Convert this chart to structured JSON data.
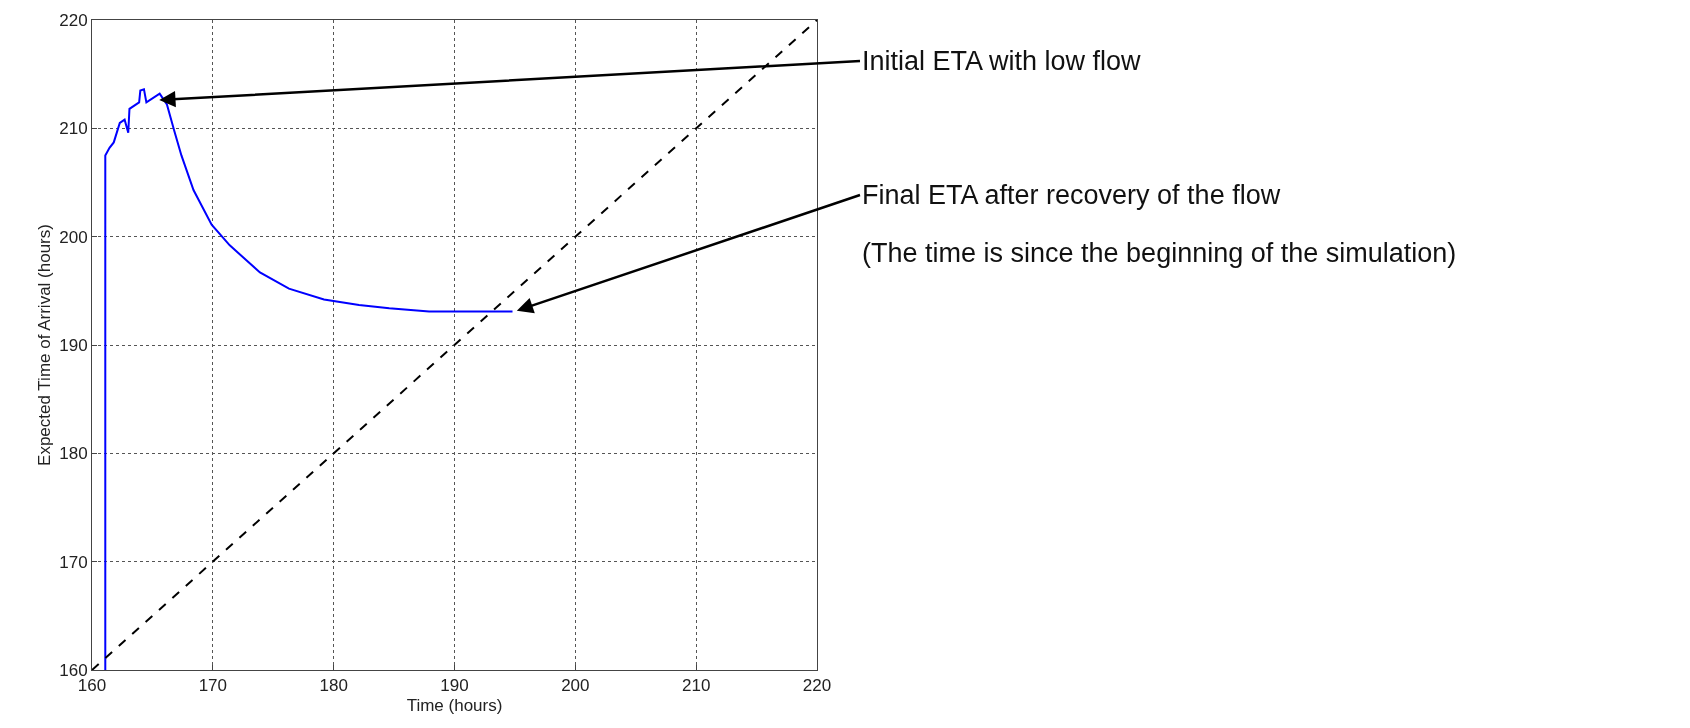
{
  "chart_data": {
    "type": "line",
    "xlabel": "Time (hours)",
    "ylabel": "Expected Time of Arrival (hours)",
    "xlim": [
      160,
      220
    ],
    "xticks": [
      160,
      170,
      180,
      190,
      200,
      210,
      220
    ],
    "ylim": [
      160,
      220
    ],
    "yticks": [
      160,
      170,
      180,
      190,
      200,
      210,
      220
    ],
    "grid": true,
    "series": [
      {
        "color": "#0000ff",
        "line_style": "solid",
        "x": [
          161.1,
          161.1,
          161.45,
          161.8,
          162.3,
          162.7,
          163.0,
          163.1,
          163.9,
          164.0,
          164.3,
          164.5,
          165.6,
          166.2,
          166.8,
          167.4,
          168.4,
          169.9,
          171.4,
          173.9,
          176.3,
          179.2,
          182.1,
          184.6,
          187.9,
          194.8
        ],
        "values": [
          160,
          207.5,
          208.2,
          208.7,
          210.5,
          210.8,
          209.6,
          211.8,
          212.4,
          213.5,
          213.6,
          212.4,
          213.2,
          212.2,
          209.8,
          207.5,
          204.3,
          201.1,
          199.2,
          196.7,
          195.2,
          194.2,
          193.7,
          193.4,
          193.1,
          193.1
        ]
      },
      {
        "color": "#000000",
        "line_style": "dashed",
        "x": [
          160,
          220
        ],
        "values": [
          160,
          220
        ]
      }
    ],
    "annotations": [
      {
        "text": "Initial ETA with low flow",
        "x": 165.4,
        "y": 212.6
      },
      {
        "text": "Final ETA after recovery of the flow",
        "x": 195,
        "y": 193.1
      },
      "(The time is since the beginning of the simulation)"
    ]
  }
}
